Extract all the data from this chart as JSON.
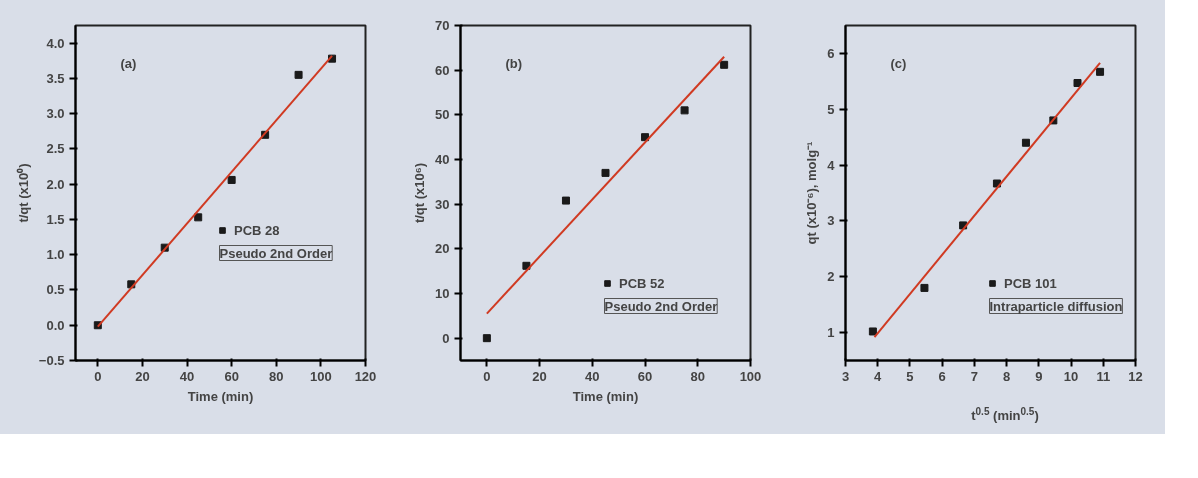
{
  "chart_data": [
    {
      "type": "scatter",
      "xlabel": "Time (min)",
      "ylabel": "t/qt (x10⁰)",
      "annotations": [
        "(a)",
        "Pseudo 2nd Order"
      ],
      "legend": "right",
      "xlim": [
        -10,
        120
      ],
      "xticks": [
        0,
        20,
        40,
        60,
        80,
        100,
        120
      ],
      "ylim": [
        -0.5,
        4.25
      ],
      "yticks": [
        -0.5,
        {
          "value": 0,
          "label": "0.0"
        },
        0.5,
        {
          "value": 1,
          "label": "1.0"
        },
        1.5,
        {
          "value": 2,
          "label": "2.0"
        },
        2.5,
        {
          "value": 3,
          "label": "3.0"
        },
        3.5,
        {
          "value": 4,
          "label": "4.0"
        }
      ],
      "series": [
        {
          "type": "scatter",
          "marker": "square",
          "name": "PCB 28",
          "color": "#1a1a1a",
          "x": [
            0,
            15,
            30,
            45,
            60,
            75,
            90,
            105
          ],
          "values": [
            0.0,
            0.58,
            1.1,
            1.53,
            2.06,
            2.7,
            3.55,
            3.78
          ]
        },
        {
          "type": "line",
          "marker": "none",
          "color": "#d03a22",
          "x": [
            0,
            105
          ],
          "values": [
            -0.02,
            3.82
          ]
        }
      ]
    },
    {
      "type": "scatter",
      "xlabel": "Time (min)",
      "ylabel": "t/qt (x10⁶)",
      "annotations": [
        "(b)",
        "Pseudo 2nd Order"
      ],
      "legend": "bottom right",
      "xlim": [
        -10,
        100
      ],
      "xticks": [
        0,
        20,
        40,
        60,
        80,
        100
      ],
      "ylim": [
        -5,
        70
      ],
      "yticks": [
        0,
        10,
        20,
        30,
        40,
        50,
        60,
        70
      ],
      "series": [
        {
          "type": "scatter",
          "marker": "square",
          "name": "PCB 52",
          "color": "#1a1a1a",
          "x": [
            0,
            15,
            30,
            45,
            60,
            75,
            90
          ],
          "values": [
            0,
            16.2,
            30.8,
            37,
            45,
            51,
            61.2
          ]
        },
        {
          "type": "line",
          "marker": "none",
          "color": "#d03a22",
          "x": [
            0,
            90
          ],
          "values": [
            5.5,
            63
          ]
        }
      ]
    },
    {
      "type": "scatter",
      "xlabel": "t$^{0.5}$ (min$^{0.5}$)",
      "ylabel": "qt (x10⁻⁶), molg⁻¹",
      "annotations": [
        "(c)",
        "Intraparticle diffusion"
      ],
      "legend": "bottom right",
      "xlim": [
        3,
        12
      ],
      "xticks": [
        3,
        4,
        5,
        6,
        7,
        8,
        9,
        10,
        11,
        12
      ],
      "ylim": [
        0.5,
        6.5
      ],
      "yticks": [
        1,
        2,
        3,
        4,
        5,
        6
      ],
      "series": [
        {
          "type": "scatter",
          "marker": "square",
          "name": "PCB 101",
          "color": "#1a1a1a",
          "x": [
            3.85,
            5.45,
            6.65,
            7.7,
            8.6,
            9.45,
            10.2,
            10.9
          ],
          "values": [
            1.02,
            1.8,
            2.92,
            3.67,
            4.4,
            4.8,
            5.47,
            5.67
          ]
        },
        {
          "type": "line",
          "marker": "none",
          "color": "#d03a22",
          "x": [
            3.9,
            10.9
          ],
          "values": [
            0.92,
            5.83
          ]
        }
      ]
    }
  ]
}
